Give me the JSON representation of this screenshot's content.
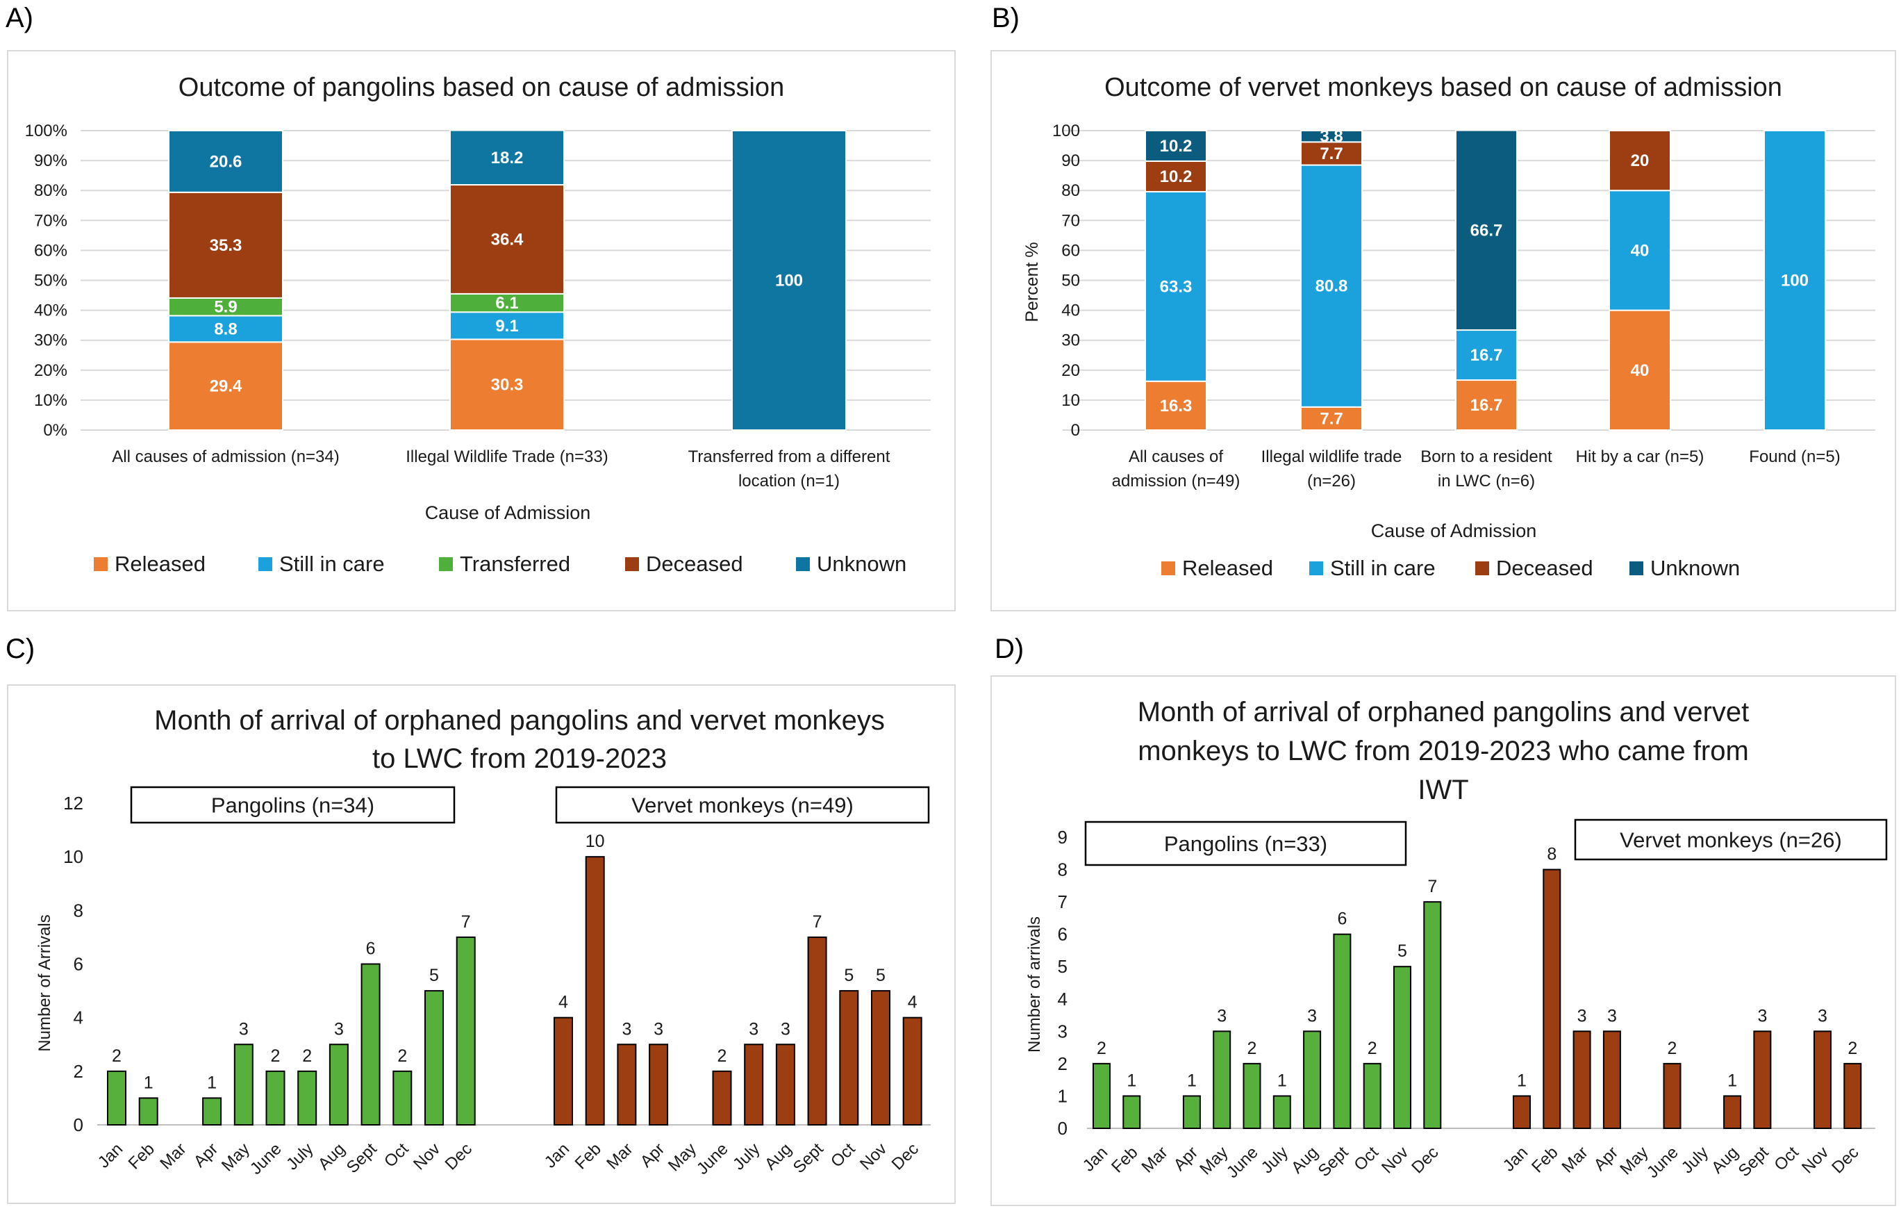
{
  "panel_labels": {
    "a": "A)",
    "b": "B)",
    "c": "C)",
    "d": "D)"
  },
  "colors": {
    "released": "#ED7D31",
    "still_in_care": "#1BA1DB",
    "transferred": "#4EAF3B",
    "deceased": "#9C3D12",
    "unknown_a": "#0E76A0",
    "unknown_b": "#0B5C7F",
    "green_bar": "#57B03B",
    "brown_bar": "#9C3D12",
    "grid": "#d9d9d9"
  },
  "chart_data": [
    {
      "id": "A",
      "type": "bar",
      "stacked": true,
      "title": "Outcome of pangolins based on cause of admission",
      "xlabel": "Cause of Admission",
      "ylabel": "",
      "ylim": [
        0,
        100
      ],
      "yticks": [
        "0%",
        "10%",
        "20%",
        "30%",
        "40%",
        "50%",
        "60%",
        "70%",
        "80%",
        "90%",
        "100%"
      ],
      "categories": [
        [
          "All causes of admission (n=34)"
        ],
        [
          "Illegal Wildlife Trade (n=33)"
        ],
        [
          "Transferred from a different",
          "location (n=1)"
        ]
      ],
      "series": [
        {
          "name": "Released",
          "color_key": "released",
          "values": [
            29.4,
            30.3,
            0
          ]
        },
        {
          "name": "Still in care",
          "color_key": "still_in_care",
          "values": [
            8.8,
            9.1,
            0
          ]
        },
        {
          "name": "Transferred",
          "color_key": "transferred",
          "values": [
            5.9,
            6.1,
            0
          ]
        },
        {
          "name": "Deceased",
          "color_key": "deceased",
          "values": [
            35.3,
            36.4,
            0
          ]
        },
        {
          "name": "Unknown",
          "color_key": "unknown_a",
          "values": [
            20.6,
            18.2,
            100
          ]
        }
      ],
      "legend": "bottom"
    },
    {
      "id": "B",
      "type": "bar",
      "stacked": true,
      "title": "Outcome of vervet monkeys based on cause of admission",
      "xlabel": "Cause of Admission",
      "ylabel": "Percent %",
      "ylim": [
        0,
        100
      ],
      "yticks": [
        "0",
        "10",
        "20",
        "30",
        "40",
        "50",
        "60",
        "70",
        "80",
        "90",
        "100"
      ],
      "categories": [
        [
          "All causes of",
          "admission (n=49)"
        ],
        [
          "Illegal wildlife trade",
          "(n=26)"
        ],
        [
          "Born to a resident",
          "in LWC (n=6)"
        ],
        [
          "Hit by a car (n=5)"
        ],
        [
          "Found (n=5)"
        ]
      ],
      "series": [
        {
          "name": "Released",
          "color_key": "released",
          "values": [
            16.3,
            7.7,
            16.7,
            40,
            0
          ]
        },
        {
          "name": "Still in care",
          "color_key": "still_in_care",
          "values": [
            63.3,
            80.8,
            16.7,
            40,
            100
          ]
        },
        {
          "name": "Deceased",
          "color_key": "deceased",
          "values": [
            10.2,
            7.7,
            0,
            20,
            0
          ]
        },
        {
          "name": "Unknown",
          "color_key": "unknown_b",
          "values": [
            10.2,
            3.8,
            66.7,
            0,
            0
          ]
        }
      ],
      "legend": "bottom"
    },
    {
      "id": "C",
      "type": "bar",
      "title_lines": [
        "Month of arrival of orphaned pangolins and vervet monkeys",
        "to LWC from 2019-2023"
      ],
      "ylabel": "Number of Arrivals",
      "ylim": [
        0,
        12
      ],
      "yticks": [
        "0",
        "2",
        "4",
        "6",
        "8",
        "10",
        "12"
      ],
      "groups": [
        {
          "label": "Pangolins (n=34)",
          "color_key": "green_bar",
          "categories": [
            "Jan",
            "Feb",
            "Mar",
            "Apr",
            "May",
            "June",
            "July",
            "Aug",
            "Sept",
            "Oct",
            "Nov",
            "Dec"
          ],
          "values": [
            2,
            1,
            0,
            1,
            3,
            2,
            2,
            3,
            6,
            2,
            5,
            7
          ]
        },
        {
          "label": "Vervet monkeys (n=49)",
          "color_key": "brown_bar",
          "categories": [
            "Jan",
            "Feb",
            "Mar",
            "Apr",
            "May",
            "June",
            "July",
            "Aug",
            "Sept",
            "Oct",
            "Nov",
            "Dec"
          ],
          "values": [
            4,
            10,
            3,
            3,
            0,
            2,
            3,
            3,
            7,
            5,
            5,
            4
          ]
        }
      ]
    },
    {
      "id": "D",
      "type": "bar",
      "title_lines": [
        "Month of arrival of orphaned pangolins and vervet",
        "monkeys to LWC from 2019-2023 who came from",
        "IWT"
      ],
      "ylabel": "Number of arrivals",
      "ylim": [
        0,
        9
      ],
      "yticks": [
        "0",
        "1",
        "2",
        "3",
        "4",
        "5",
        "6",
        "7",
        "8",
        "9"
      ],
      "groups": [
        {
          "label": "Pangolins (n=33)",
          "color_key": "green_bar",
          "categories": [
            "Jan",
            "Feb",
            "Mar",
            "Apr",
            "May",
            "June",
            "July",
            "Aug",
            "Sept",
            "Oct",
            "Nov",
            "Dec"
          ],
          "values": [
            2,
            1,
            0,
            1,
            3,
            2,
            1,
            3,
            6,
            2,
            5,
            7
          ]
        },
        {
          "label": "Vervet monkeys (n=26)",
          "color_key": "brown_bar",
          "categories": [
            "Jan",
            "Feb",
            "Mar",
            "Apr",
            "May",
            "June",
            "July",
            "Aug",
            "Sept",
            "Oct",
            "Nov",
            "Dec"
          ],
          "values": [
            1,
            8,
            3,
            3,
            0,
            2,
            0,
            1,
            3,
            0,
            3,
            2
          ]
        }
      ]
    }
  ]
}
